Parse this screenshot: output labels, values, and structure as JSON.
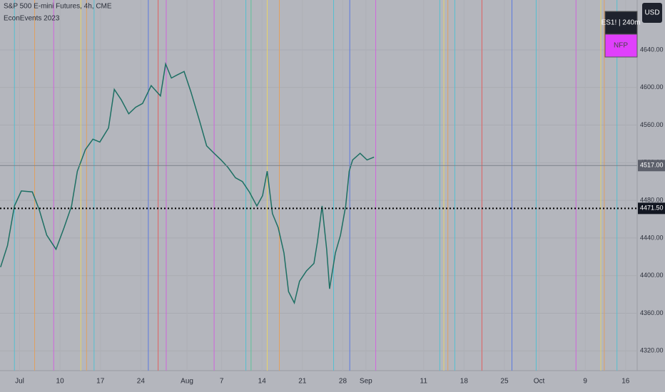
{
  "chart_data": {
    "type": "line",
    "title": "S&P 500 E-mini Futures, 4h, CME",
    "subtitle": "EconEvents 2023",
    "currency": "USD",
    "symbol_box": "ES1! | 240m",
    "event_box": "NFP",
    "color": "#1d6f63",
    "x": [
      -0.3,
      0.9,
      2.1,
      3.3,
      5.2,
      6.4,
      7.7,
      9.3,
      10.7,
      12.0,
      13.0,
      14.4,
      15.7,
      16.9,
      18.4,
      19.4,
      20.6,
      21.9,
      23.1,
      24.3,
      25.8,
      27.4,
      28.3,
      29.3,
      30.2,
      31.5,
      32.7,
      34.2,
      35.4,
      36.7,
      37.9,
      39.1,
      40.4,
      41.6,
      42.8,
      44.1,
      45.1,
      45.9,
      46.8,
      47.8,
      48.8,
      49.6,
      50.6,
      51.5,
      52.7,
      54.0,
      54.6,
      55.4,
      56.2,
      56.7,
      57.7,
      58.6,
      59.5,
      60.1,
      60.7,
      62.0,
      63.2,
      64.4
    ],
    "values": [
      4409,
      4432,
      4474,
      4490,
      4489,
      4470,
      4443,
      4428,
      4451,
      4474,
      4511,
      4534,
      4545,
      4542,
      4557,
      4598,
      4587,
      4572,
      4579,
      4583,
      4602,
      4591,
      4625,
      4610,
      4613,
      4617,
      4595,
      4564,
      4538,
      4530,
      4523,
      4515,
      4504,
      4500,
      4489,
      4474,
      4485,
      4511,
      4466,
      4451,
      4424,
      4383,
      4371,
      4394,
      4405,
      4413,
      4436,
      4474,
      4428,
      4386,
      4424,
      4443,
      4474,
      4511,
      4523,
      4530,
      4523,
      4526
    ],
    "xlim": [
      -0.4,
      110
    ],
    "ylim": [
      4299,
      4693
    ],
    "xticks": [
      {
        "value": 3,
        "label": "Jul"
      },
      10,
      17,
      24,
      {
        "value": 32,
        "label": "Aug"
      },
      {
        "value": 38,
        "label": "7"
      },
      {
        "value": 45,
        "label": "14"
      },
      {
        "value": 52,
        "label": "21"
      },
      {
        "value": 59,
        "label": "28"
      },
      {
        "value": 63,
        "label": "Sep"
      },
      {
        "value": 73,
        "label": "11"
      },
      {
        "value": 80,
        "label": "18"
      },
      {
        "value": 87,
        "label": "25"
      },
      {
        "value": 93,
        "label": "Oct"
      },
      {
        "value": 101,
        "label": "9"
      },
      {
        "value": 108,
        "label": "16"
      }
    ],
    "yticks": [
      {
        "value": 4320,
        "label": "4320.00"
      },
      {
        "value": 4360,
        "label": "4360.00"
      },
      {
        "value": 4400,
        "label": "4400.00"
      },
      {
        "value": 4440,
        "label": "4440.00"
      },
      {
        "value": 4480,
        "label": "4480.00"
      },
      {
        "value": 4520,
        "label": "4520.00"
      },
      {
        "value": 4560,
        "label": "4560.00"
      },
      {
        "value": 4600,
        "label": "4600.00"
      },
      {
        "value": 4640,
        "label": "4640.00"
      }
    ],
    "grid": true,
    "last_price": {
      "value": 4517,
      "label": "4517.00"
    },
    "crosshair_price": {
      "value": 4471.5,
      "label": "4471.50"
    },
    "events": [
      {
        "x": 2.1,
        "color": "#55bfd0"
      },
      {
        "x": 5.6,
        "color": "#e0a060"
      },
      {
        "x": 8.9,
        "color": "#d065dd"
      },
      {
        "x": 13.6,
        "color": "#e6d36a"
      },
      {
        "x": 14.6,
        "color": "#e0a060"
      },
      {
        "x": 15.9,
        "color": "#55bfd0"
      },
      {
        "x": 25.3,
        "color": "#5a78e0"
      },
      {
        "x": 27.0,
        "color": "#e06060"
      },
      {
        "x": 28.4,
        "color": "#d065dd"
      },
      {
        "x": 36.7,
        "color": "#d065dd"
      },
      {
        "x": 42.2,
        "color": "#55bfd0"
      },
      {
        "x": 43.1,
        "color": "#5cc49a"
      },
      {
        "x": 45.9,
        "color": "#e6d36a"
      },
      {
        "x": 48.0,
        "color": "#e0a060"
      },
      {
        "x": 57.4,
        "color": "#55bfd0"
      },
      {
        "x": 60.2,
        "color": "#5a78e0"
      },
      {
        "x": 64.7,
        "color": "#d065dd"
      },
      {
        "x": 75.8,
        "color": "#55bfd0"
      },
      {
        "x": 76.5,
        "color": "#e6d36a"
      },
      {
        "x": 77.2,
        "color": "#e0a060"
      },
      {
        "x": 78.4,
        "color": "#55bfd0"
      },
      {
        "x": 83.1,
        "color": "#e06060"
      },
      {
        "x": 88.3,
        "color": "#5a78e0"
      },
      {
        "x": 92.5,
        "color": "#55bfd0"
      },
      {
        "x": 99.4,
        "color": "#d065dd"
      },
      {
        "x": 103.7,
        "color": "#e6d36a"
      },
      {
        "x": 104.3,
        "color": "#e0a060"
      },
      {
        "x": 106.5,
        "color": "#55bfd0"
      }
    ]
  }
}
